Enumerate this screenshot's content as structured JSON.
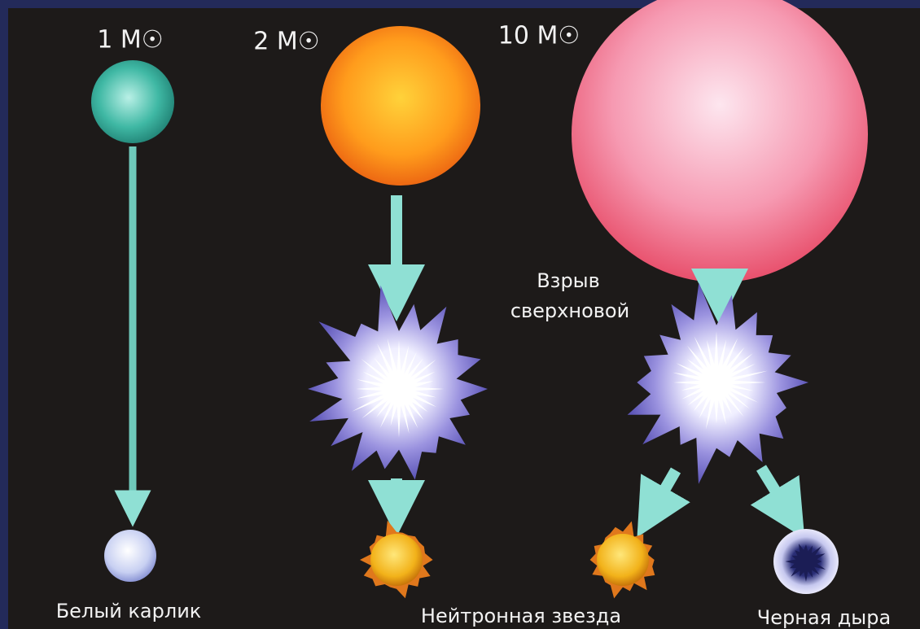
{
  "masses": [
    "1 M☉",
    "2 M☉",
    "10 M☉"
  ],
  "supernova": [
    "Взрыв",
    "сверхновой"
  ],
  "outcomes": [
    "Белый карлик",
    "Нейтронная звезда",
    "Черная дыра"
  ]
}
